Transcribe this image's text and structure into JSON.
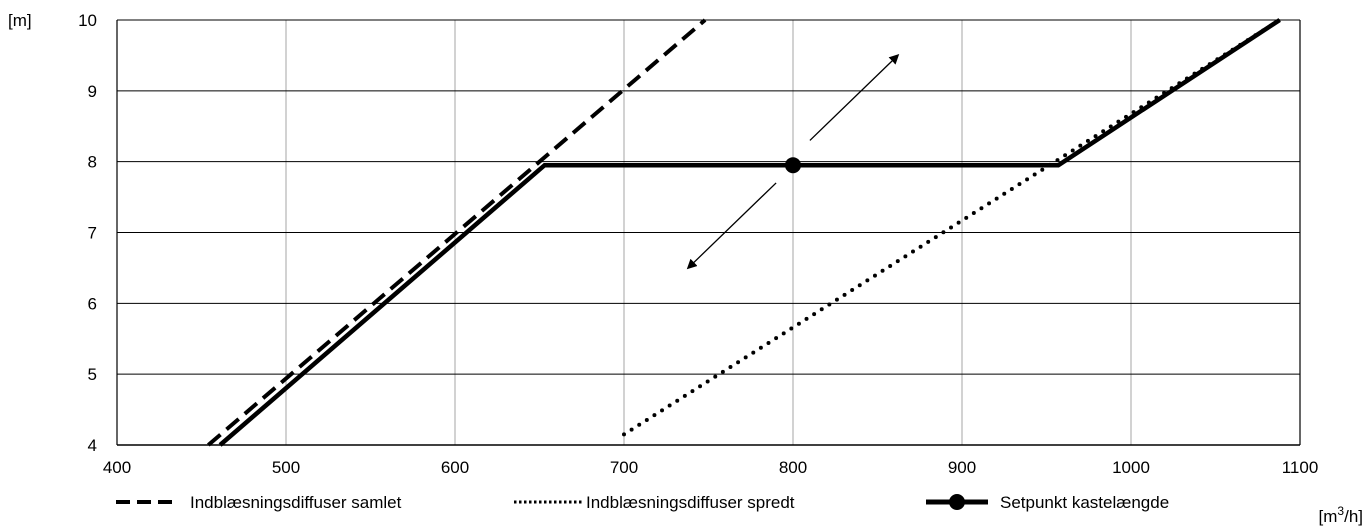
{
  "chart_data": {
    "type": "line",
    "title": "",
    "xlabel": "[m³/h]",
    "xlabel_base": "[m",
    "xlabel_sup": "3",
    "xlabel_tail": "/h]",
    "ylabel": "[m]",
    "xlim": [
      400,
      1100
    ],
    "ylim": [
      4,
      10
    ],
    "xticks": [
      400,
      500,
      600,
      700,
      800,
      900,
      1000,
      1100
    ],
    "xtick_labels": [
      "400",
      "500",
      "600",
      "700",
      "800",
      "900",
      "1000",
      "1100"
    ],
    "yticks": [
      4,
      5,
      6,
      7,
      8,
      9,
      10
    ],
    "ytick_labels": [
      "4",
      "5",
      "6",
      "7",
      "8",
      "9",
      "10"
    ],
    "grid": true,
    "legend_position": "bottom",
    "series": [
      {
        "name": "Indblæsningsdiffuser samlet",
        "style": "dashed",
        "color": "#000000",
        "x": [
          454,
          748
        ],
        "y": [
          4.0,
          10.0
        ]
      },
      {
        "name": "Indblæsningsdiffuser spredt",
        "style": "dotted",
        "color": "#000000",
        "x": [
          700,
          955,
          1088
        ],
        "y": [
          4.15,
          8.0,
          10.0
        ]
      },
      {
        "name": "Setpunkt kastelængde",
        "style": "solid-thick",
        "color": "#000000",
        "x": [
          461,
          653,
          957,
          1088
        ],
        "y": [
          4.0,
          7.95,
          7.95,
          10.0
        ],
        "setpoint": {
          "x": 800,
          "y": 7.95
        }
      }
    ],
    "annotations": [
      {
        "kind": "arrow",
        "from": {
          "x": 810,
          "y": 8.3
        },
        "to": {
          "x": 862,
          "y": 9.5
        }
      },
      {
        "kind": "arrow",
        "from": {
          "x": 790,
          "y": 7.7
        },
        "to": {
          "x": 738,
          "y": 6.5
        }
      }
    ]
  }
}
